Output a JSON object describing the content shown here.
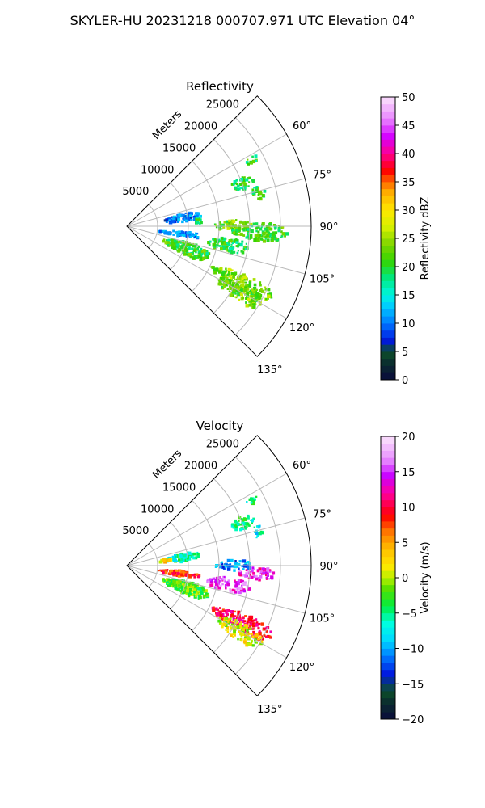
{
  "suptitle": "SKYLER-HU  20231218  000707.971 UTC Elevation 04°",
  "chart_data": [
    {
      "type": "heatmap",
      "projection": "polar-sector",
      "title": "Reflectivity",
      "radial_label": "Meters",
      "r_ticks": [
        "5000",
        "10000",
        "15000",
        "20000",
        "25000"
      ],
      "theta_ticks": [
        "60°",
        "75°",
        "90°",
        "105°",
        "120°",
        "135°"
      ],
      "theta_range_deg": [
        45,
        135
      ],
      "r_max_m": 30000,
      "grid": true,
      "colorbar": {
        "label": "Reflectivity dBZ",
        "range": [
          0,
          50
        ],
        "ticks": [
          "0",
          "5",
          "10",
          "15",
          "20",
          "25",
          "30",
          "35",
          "40",
          "45",
          "50"
        ],
        "colormap": "pyart_HomeyerRainbow-like",
        "placement": "right"
      },
      "echo_regions": [
        {
          "az": [
            60,
            63
          ],
          "r_km": [
            22,
            24
          ],
          "level": 20
        },
        {
          "az": [
            66,
            72
          ],
          "r_km": [
            18,
            22
          ],
          "level": 20
        },
        {
          "az": [
            72,
            78
          ],
          "r_km": [
            21,
            23
          ],
          "level": 20
        },
        {
          "az": [
            76,
            84
          ],
          "r_km": [
            6,
            12
          ],
          "level": 10
        },
        {
          "az": [
            82,
            88
          ],
          "r_km": [
            11,
            12
          ],
          "level": 20
        },
        {
          "az": [
            86,
            92
          ],
          "r_km": [
            14,
            20
          ],
          "level": 23
        },
        {
          "az": [
            88,
            96
          ],
          "r_km": [
            17,
            26
          ],
          "level": 21
        },
        {
          "az": [
            94,
            100
          ],
          "r_km": [
            5,
            12
          ],
          "level": 10
        },
        {
          "az": [
            96,
            104
          ],
          "r_km": [
            13,
            20
          ],
          "level": 20
        },
        {
          "az": [
            104,
            116
          ],
          "r_km": [
            6,
            14
          ],
          "level": 21
        },
        {
          "az": [
            112,
            120
          ],
          "r_km": [
            15,
            26
          ],
          "level": 24
        },
        {
          "az": [
            116,
            124
          ],
          "r_km": [
            17,
            25
          ],
          "level": 23
        }
      ]
    },
    {
      "type": "heatmap",
      "projection": "polar-sector",
      "title": "Velocity",
      "radial_label": "Meters",
      "r_ticks": [
        "5000",
        "10000",
        "15000",
        "20000",
        "25000"
      ],
      "theta_ticks": [
        "60°",
        "75°",
        "90°",
        "105°",
        "120°",
        "135°"
      ],
      "theta_range_deg": [
        45,
        135
      ],
      "r_max_m": 30000,
      "grid": true,
      "colorbar": {
        "label": "Velocity (m/s)",
        "range": [
          -20,
          20
        ],
        "ticks": [
          "−20",
          "−15",
          "−10",
          "−5",
          "0",
          "5",
          "10",
          "15",
          "20"
        ],
        "colormap": "pyart_BuDRd18-like",
        "placement": "right"
      },
      "echo_regions": [
        {
          "az": [
            60,
            63
          ],
          "r_km": [
            22,
            24
          ],
          "level": -5
        },
        {
          "az": [
            66,
            72
          ],
          "r_km": [
            18,
            22
          ],
          "level": -5
        },
        {
          "az": [
            72,
            78
          ],
          "r_km": [
            21,
            23
          ],
          "level": -7
        },
        {
          "az": [
            76,
            84
          ],
          "r_km": [
            6,
            12
          ],
          "level": -6
        },
        {
          "az": [
            78,
            82
          ],
          "r_km": [
            5,
            7
          ],
          "level": 2
        },
        {
          "az": [
            86,
            92
          ],
          "r_km": [
            14,
            20
          ],
          "level": -11
        },
        {
          "az": [
            90,
            96
          ],
          "r_km": [
            18,
            24
          ],
          "level": 14
        },
        {
          "az": [
            94,
            100
          ],
          "r_km": [
            5,
            12
          ],
          "level": 8
        },
        {
          "az": [
            96,
            104
          ],
          "r_km": [
            13,
            20
          ],
          "level": 15
        },
        {
          "az": [
            104,
            116
          ],
          "r_km": [
            6,
            14
          ],
          "level": -2
        },
        {
          "az": [
            112,
            120
          ],
          "r_km": [
            15,
            26
          ],
          "level": 10
        },
        {
          "az": [
            116,
            124
          ],
          "r_km": [
            17,
            25
          ],
          "level": 1
        }
      ]
    }
  ]
}
